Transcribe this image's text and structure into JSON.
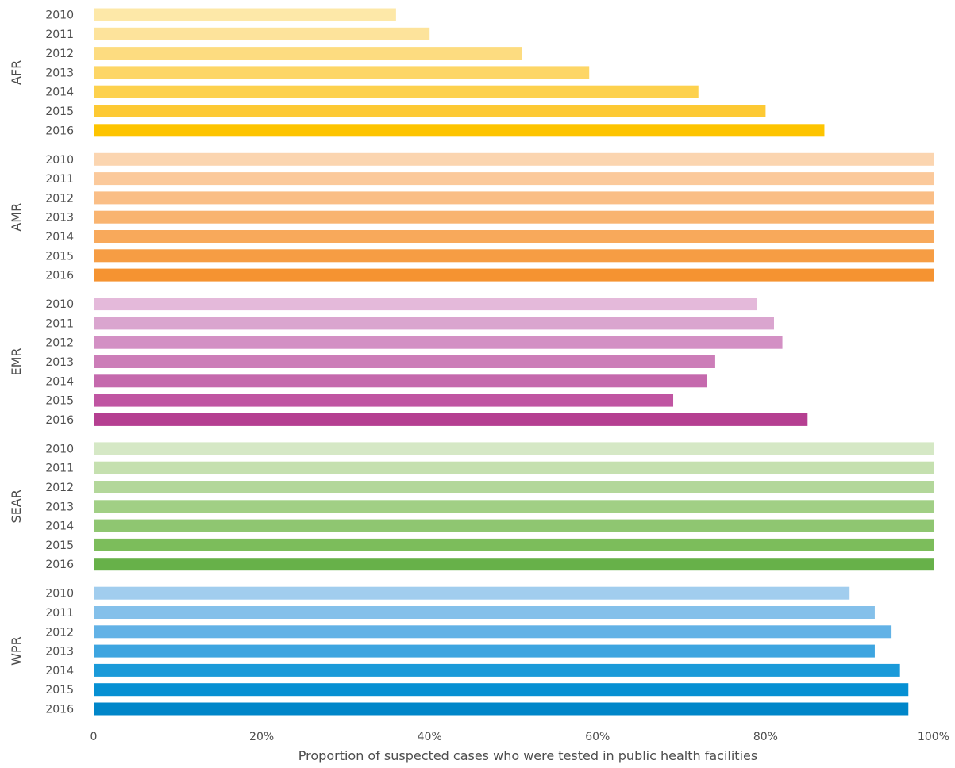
{
  "chart_data": {
    "type": "bar",
    "orientation": "horizontal",
    "xlabel": "Proportion of suspected cases who were tested in public health facilities",
    "xlim": [
      0,
      100
    ],
    "xticks": [
      {
        "value": 0,
        "label": "0"
      },
      {
        "value": 20,
        "label": "20%"
      },
      {
        "value": 40,
        "label": "40%"
      },
      {
        "value": 60,
        "label": "60%"
      },
      {
        "value": 80,
        "label": "80%"
      },
      {
        "value": 100,
        "label": "100%"
      }
    ],
    "years": [
      "2010",
      "2011",
      "2012",
      "2013",
      "2014",
      "2015",
      "2016"
    ],
    "groups": [
      {
        "region": "AFR",
        "colors": [
          "#fde8a8",
          "#fde39b",
          "#fddc80",
          "#fdd666",
          "#fdd14d",
          "#fdc933",
          "#fdc400"
        ],
        "values": [
          36,
          40,
          51,
          59,
          72,
          80,
          87
        ]
      },
      {
        "region": "AMR",
        "colors": [
          "#fbd5b0",
          "#fbc99b",
          "#fabe86",
          "#f9b470",
          "#f8a95b",
          "#f69d44",
          "#f59331"
        ],
        "values": [
          100,
          100,
          100,
          100,
          100,
          100,
          100
        ]
      },
      {
        "region": "EMR",
        "colors": [
          "#e4b9da",
          "#daa5cf",
          "#d390c4",
          "#cc7db8",
          "#c569ad",
          "#c055a2",
          "#b53f91"
        ],
        "values": [
          79,
          81,
          82,
          74,
          73,
          69,
          85
        ]
      },
      {
        "region": "SEAR",
        "colors": [
          "#d5e8c5",
          "#c5e0af",
          "#b3d79a",
          "#a1cf85",
          "#8fc671",
          "#7cbd5b",
          "#67b149"
        ],
        "values": [
          100,
          100,
          100,
          100,
          100,
          100,
          100
        ]
      },
      {
        "region": "WPR",
        "colors": [
          "#a1cdee",
          "#84c0ea",
          "#62b2e6",
          "#3da5e0",
          "#1a9ad9",
          "#0690d3",
          "#0086c9"
        ],
        "values": [
          90,
          93,
          95,
          93,
          96,
          97,
          97
        ]
      }
    ]
  }
}
